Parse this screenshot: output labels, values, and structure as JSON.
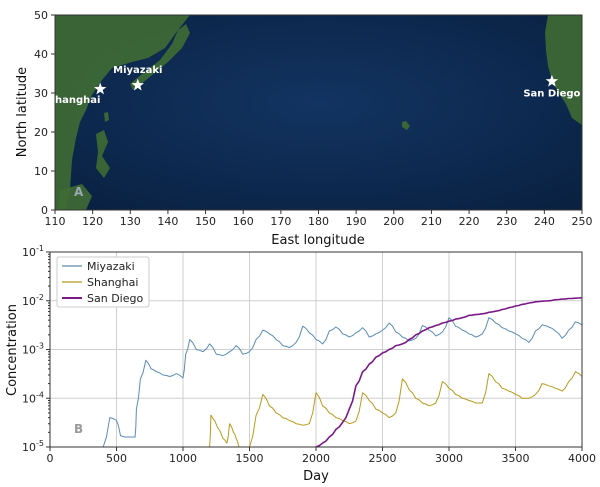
{
  "chart_data": [
    {
      "type": "map",
      "panel_label": "A",
      "xlabel": "East longitude",
      "ylabel": "North latitude",
      "xlim": [
        110,
        250
      ],
      "ylim": [
        0,
        50
      ],
      "xticks": [
        "110",
        "120",
        "130",
        "140",
        "150",
        "160",
        "170",
        "180",
        "190",
        "200",
        "210",
        "220",
        "230",
        "240",
        "250"
      ],
      "yticks": [
        "0",
        "10",
        "20",
        "30",
        "40",
        "50"
      ],
      "locations": [
        {
          "name": "Shanghai",
          "lon": 122,
          "lat": 31
        },
        {
          "name": "Miyazaki",
          "lon": 132,
          "lat": 32
        },
        {
          "name": "San Diego",
          "lon": 242,
          "lat": 33
        }
      ],
      "colors": {
        "ocean": "#0d2748",
        "land": "#3f6b34",
        "marker": "#ffffff"
      }
    },
    {
      "type": "line",
      "panel_label": "B",
      "xlabel": "Day",
      "ylabel": "Concentration",
      "xlim": [
        0,
        4000
      ],
      "ylim": [
        1e-05,
        0.1
      ],
      "yscale": "log",
      "xticks": [
        "0",
        "500",
        "1000",
        "1500",
        "2000",
        "2500",
        "3000",
        "3500",
        "4000"
      ],
      "yticks": [
        {
          "base": "10",
          "exp": "-5"
        },
        {
          "base": "10",
          "exp": "-4"
        },
        {
          "base": "10",
          "exp": "-3"
        },
        {
          "base": "10",
          "exp": "-2"
        },
        {
          "base": "10",
          "exp": "-1"
        }
      ],
      "grid": true,
      "legend_position": "top-left",
      "series": [
        {
          "name": "Miyazaki",
          "color": "#5b8db5",
          "x": [
            400,
            450,
            500,
            530,
            560,
            600,
            640,
            650,
            680,
            720,
            760,
            800,
            850,
            900,
            950,
            1000,
            1020,
            1050,
            1100,
            1150,
            1200,
            1250,
            1300,
            1350,
            1400,
            1450,
            1500,
            1550,
            1600,
            1650,
            1700,
            1750,
            1800,
            1850,
            1900,
            1950,
            2000,
            2050,
            2100,
            2150,
            2200,
            2250,
            2300,
            2350,
            2400,
            2450,
            2500,
            2550,
            2600,
            2650,
            2700,
            2750,
            2800,
            2850,
            2900,
            2950,
            3000,
            3050,
            3100,
            3150,
            3200,
            3250,
            3300,
            3350,
            3400,
            3450,
            3500,
            3550,
            3600,
            3650,
            3700,
            3750,
            3800,
            3850,
            3900,
            3950,
            4000
          ],
          "y": [
            1e-05,
            4e-05,
            3.5e-05,
            1.7e-05,
            1.6e-05,
            1.6e-05,
            1.6e-05,
            6e-05,
            0.00025,
            0.0006,
            0.0004,
            0.00035,
            0.0003,
            0.00028,
            0.00032,
            0.00026,
            0.0008,
            0.0016,
            0.001,
            0.0009,
            0.0013,
            0.0008,
            0.00075,
            0.0009,
            0.0012,
            0.0008,
            0.0009,
            0.0016,
            0.0025,
            0.0021,
            0.0016,
            0.0012,
            0.0011,
            0.0014,
            0.003,
            0.0022,
            0.0016,
            0.0013,
            0.0024,
            0.0029,
            0.0021,
            0.0018,
            0.0022,
            0.0028,
            0.0018,
            0.0021,
            0.0025,
            0.0035,
            0.0023,
            0.0018,
            0.0015,
            0.0017,
            0.0031,
            0.0025,
            0.0019,
            0.0023,
            0.0045,
            0.003,
            0.0025,
            0.0021,
            0.0018,
            0.0021,
            0.0045,
            0.0035,
            0.0028,
            0.0024,
            0.0021,
            0.0017,
            0.0014,
            0.0024,
            0.0032,
            0.0029,
            0.0024,
            0.0017,
            0.0025,
            0.0037,
            0.0032
          ]
        },
        {
          "name": "Shanghai",
          "color": "#b89a1c",
          "x": [
            1200,
            1210,
            1220,
            1260,
            1300,
            1330,
            1350,
            1380,
            1400,
            1420,
            1450,
            1500,
            1550,
            1600,
            1650,
            1700,
            1750,
            1800,
            1850,
            1900,
            1950,
            2000,
            2050,
            2100,
            2150,
            2200,
            2250,
            2300,
            2350,
            2400,
            2450,
            2500,
            2550,
            2600,
            2650,
            2700,
            2750,
            2800,
            2850,
            2900,
            2950,
            3000,
            3050,
            3100,
            3150,
            3200,
            3250,
            3300,
            3350,
            3400,
            3450,
            3500,
            3550,
            3600,
            3650,
            3700,
            3750,
            3800,
            3850,
            3900,
            3950,
            4000
          ],
          "y": [
            1e-05,
            4.5e-05,
            4e-05,
            2.5e-05,
            1.5e-05,
            1.2e-05,
            3e-05,
            2e-05,
            1.5e-05,
            1e-05,
            1e-05,
            1e-05,
            4.5e-05,
            0.00012,
            7e-05,
            5e-05,
            4e-05,
            3.5e-05,
            3e-05,
            2.8e-05,
            3e-05,
            0.00013,
            7e-05,
            5e-05,
            4e-05,
            3.5e-05,
            3e-05,
            3.4e-05,
            0.00013,
            9e-05,
            6e-05,
            5e-05,
            4e-05,
            5e-05,
            0.00025,
            0.00015,
            0.0001,
            8e-05,
            7e-05,
            8e-05,
            0.00022,
            0.00016,
            0.00012,
            0.0001,
            9e-05,
            8e-05,
            8e-05,
            0.00032,
            0.00022,
            0.00016,
            0.00014,
            0.00012,
            0.0001,
            0.0001,
            0.00012,
            0.0002,
            0.00018,
            0.00016,
            0.00014,
            0.00022,
            0.00035,
            0.00028
          ]
        },
        {
          "name": "San Diego",
          "color": "#7a1a86",
          "x": [
            2000,
            2050,
            2100,
            2150,
            2200,
            2250,
            2300,
            2350,
            2400,
            2450,
            2500,
            2550,
            2600,
            2650,
            2700,
            2750,
            2800,
            2850,
            2900,
            2950,
            3000,
            3050,
            3100,
            3150,
            3200,
            3250,
            3300,
            3350,
            3400,
            3450,
            3500,
            3550,
            3600,
            3650,
            3700,
            3750,
            3800,
            3850,
            3900,
            3950,
            4000
          ],
          "y": [
            1e-05,
            1.2e-05,
            1.6e-05,
            2.3e-05,
            3.2e-05,
            6e-05,
            0.00018,
            0.00035,
            0.0005,
            0.0007,
            0.00085,
            0.001,
            0.0012,
            0.0013,
            0.0016,
            0.002,
            0.0024,
            0.0028,
            0.0031,
            0.0035,
            0.0038,
            0.0042,
            0.0045,
            0.005,
            0.0052,
            0.0054,
            0.0058,
            0.0061,
            0.0066,
            0.0072,
            0.0078,
            0.0084,
            0.009,
            0.0095,
            0.0098,
            0.01,
            0.0105,
            0.0108,
            0.0111,
            0.0113,
            0.0115
          ]
        }
      ]
    }
  ]
}
